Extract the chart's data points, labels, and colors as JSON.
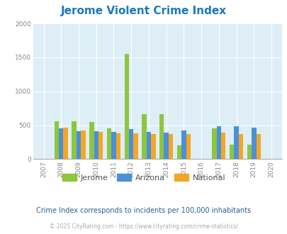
{
  "title": "Jerome Violent Crime Index",
  "title_color": "#1a7abf",
  "years": [
    2007,
    2008,
    2009,
    2010,
    2011,
    2012,
    2013,
    2014,
    2015,
    2016,
    2017,
    2018,
    2019,
    2020
  ],
  "jerome": [
    0,
    560,
    560,
    545,
    450,
    1555,
    665,
    665,
    200,
    0,
    450,
    210,
    210,
    0
  ],
  "arizona": [
    0,
    455,
    415,
    410,
    400,
    440,
    400,
    395,
    420,
    0,
    480,
    490,
    460,
    0
  ],
  "national": [
    0,
    460,
    425,
    400,
    385,
    385,
    370,
    365,
    375,
    0,
    395,
    375,
    365,
    0
  ],
  "jerome_color": "#8dc63f",
  "arizona_color": "#4a90d9",
  "national_color": "#f5a623",
  "bg_color": "#ddeef6",
  "ylim": [
    0,
    2000
  ],
  "yticks": [
    0,
    500,
    1000,
    1500,
    2000
  ],
  "subtitle": "Crime Index corresponds to incidents per 100,000 inhabitants",
  "subtitle_color": "#2a5f8f",
  "footer": "© 2025 CityRating.com - https://www.cityrating.com/crime-statistics/",
  "footer_color": "#aaaaaa",
  "legend_labels": [
    "Jerome",
    "Arizona",
    "National"
  ],
  "legend_label_color": "#555555"
}
